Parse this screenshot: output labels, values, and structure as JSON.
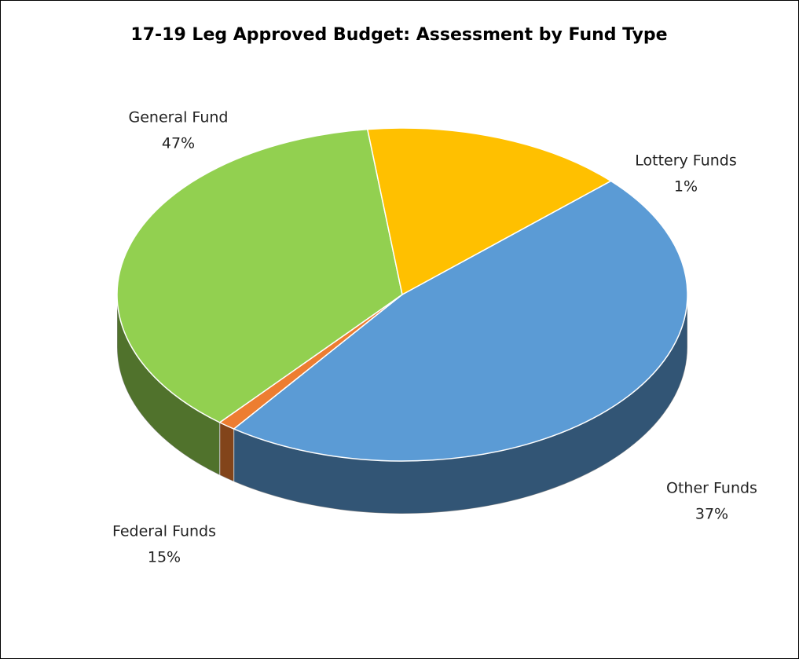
{
  "chart_data": {
    "type": "pie",
    "title": "17-19 Leg Approved Budget: Assessment by Fund Type",
    "categories": [
      "General Fund",
      "Lottery Funds",
      "Other Funds",
      "Federal Funds"
    ],
    "values": [
      47,
      1,
      37,
      15
    ],
    "value_labels": [
      "47%",
      "1%",
      "37%",
      "15%"
    ],
    "colors": [
      "#5b9bd5",
      "#ed7d31",
      "#92d050",
      "#ffc000"
    ],
    "three_d": true
  }
}
